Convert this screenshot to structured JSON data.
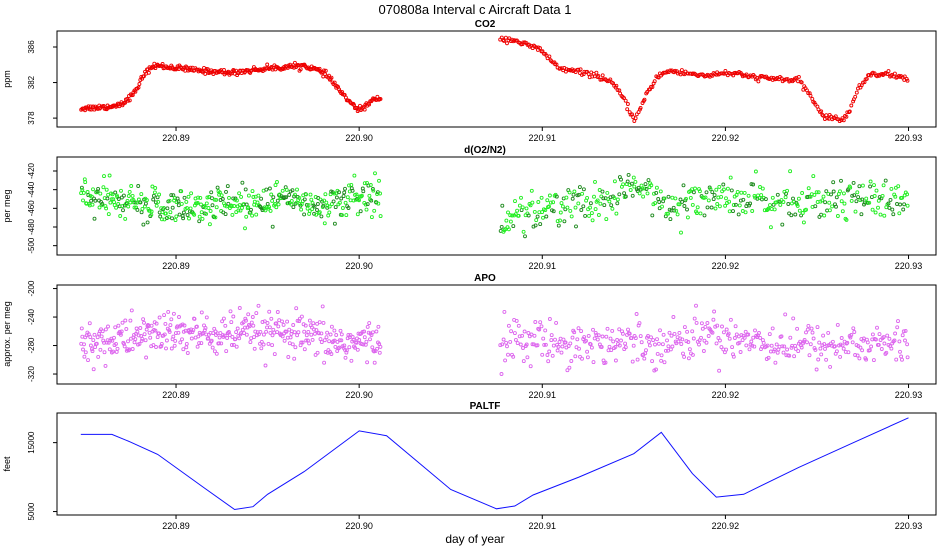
{
  "figure": {
    "title": "070808a   Interval c Aircraft Data 1",
    "xlabel": "day of year"
  },
  "chart_data": [
    {
      "type": "scatter",
      "title": "CO2",
      "ylabel": "ppm",
      "color": "#ee0000",
      "xlim": [
        220.8835,
        220.9315
      ],
      "ylim": [
        377.0,
        387.8
      ],
      "yticks": [
        378,
        382,
        386
      ],
      "xticks": [
        220.89,
        220.9,
        220.91,
        220.92,
        220.93
      ],
      "xtick_labels": [
        "220.89",
        "220.90",
        "220.91",
        "220.92",
        "220.93"
      ],
      "segments": [
        [
          220.8848,
          220.9012
        ],
        [
          220.9077,
          220.93
        ]
      ],
      "noise": 0.15,
      "points_per_segment": 320,
      "trend_x": [
        220.8848,
        220.8865,
        220.8872,
        220.8878,
        220.8882,
        220.8887,
        220.889,
        220.891,
        220.893,
        220.895,
        220.897,
        220.8975,
        220.8982,
        220.899,
        220.8995,
        220.9,
        220.9005,
        220.901,
        220.9012,
        220.9077,
        220.9085,
        220.909,
        220.9098,
        220.9105,
        220.911,
        220.912,
        220.913,
        220.9138,
        220.9145,
        220.915,
        220.9153,
        220.9158,
        220.9163,
        220.917,
        220.918,
        220.919,
        220.92,
        220.921,
        220.922,
        220.923,
        220.924,
        220.9245,
        220.9252,
        220.9256,
        220.926,
        220.9265,
        220.9268,
        220.9272,
        220.9278,
        220.928,
        220.929,
        220.93
      ],
      "trend_y": [
        379.1,
        379.3,
        379.8,
        381.0,
        382.8,
        383.8,
        383.9,
        383.4,
        383.1,
        383.6,
        383.9,
        383.6,
        382.9,
        381.0,
        379.7,
        378.9,
        379.6,
        380.3,
        380.2,
        386.9,
        386.8,
        386.3,
        385.8,
        384.5,
        383.5,
        383.2,
        382.8,
        382.0,
        380.0,
        377.8,
        378.8,
        381.0,
        382.8,
        383.3,
        383.0,
        382.8,
        383.1,
        382.8,
        382.5,
        382.4,
        382.2,
        381.0,
        378.6,
        378.0,
        378.0,
        377.9,
        379.0,
        381.0,
        382.8,
        383.0,
        382.9,
        382.4
      ]
    },
    {
      "type": "scatter",
      "title": "d(O2/N2)",
      "ylabel": "per meg",
      "color": "#22ee22",
      "color_alt": "#1f8a1f",
      "xlim": [
        220.8835,
        220.9315
      ],
      "ylim": [
        -510,
        -405
      ],
      "yticks": [
        -500,
        -480,
        -460,
        -440,
        -420
      ],
      "xticks": [
        220.89,
        220.9,
        220.91,
        220.92,
        220.93
      ],
      "xtick_labels": [
        "220.89",
        "220.90",
        "220.91",
        "220.92",
        "220.93"
      ],
      "segments": [
        [
          220.8848,
          220.9012
        ],
        [
          220.9077,
          220.93
        ]
      ],
      "noise": 10,
      "points_per_segment": 420,
      "trend_x": [
        220.8848,
        220.886,
        220.889,
        220.892,
        220.895,
        220.898,
        220.9,
        220.9012,
        220.9077,
        220.909,
        220.911,
        220.9135,
        220.915,
        220.917,
        220.919,
        220.921,
        220.923,
        220.925,
        220.927,
        220.929,
        220.93
      ],
      "trend_y": [
        -447,
        -452,
        -458,
        -456,
        -452,
        -454,
        -448,
        -444,
        -474,
        -465,
        -457,
        -455,
        -438,
        -455,
        -447,
        -452,
        -455,
        -450,
        -446,
        -453,
        -451
      ]
    },
    {
      "type": "scatter",
      "title": "APO",
      "ylabel": "approx. per meg",
      "color": "#dd66ee",
      "xlim": [
        220.8835,
        220.9315
      ],
      "ylim": [
        -334,
        -195
      ],
      "yticks": [
        -320,
        -280,
        -240,
        -200
      ],
      "xticks": [
        220.89,
        220.9,
        220.91,
        220.92,
        220.93
      ],
      "xtick_labels": [
        "220.89",
        "220.90",
        "220.91",
        "220.92",
        "220.93"
      ],
      "segments": [
        [
          220.8848,
          220.9012
        ],
        [
          220.9077,
          220.93
        ]
      ],
      "noise": 15,
      "points_per_segment": 420,
      "trend_x": [
        220.8848,
        220.887,
        220.8895,
        220.892,
        220.8945,
        220.897,
        220.899,
        220.9012,
        220.9077,
        220.91,
        220.913,
        220.915,
        220.917,
        220.919,
        220.921,
        220.923,
        220.925,
        220.928,
        220.93
      ],
      "trend_y": [
        -280,
        -270,
        -262,
        -266,
        -262,
        -268,
        -276,
        -276,
        -270,
        -274,
        -277,
        -273,
        -277,
        -262,
        -270,
        -277,
        -279,
        -278,
        -277
      ]
    },
    {
      "type": "line",
      "title": "PALTF",
      "ylabel": "feet",
      "color": "#1111ff",
      "xlim": [
        220.8835,
        220.9315
      ],
      "ylim": [
        4500,
        19300
      ],
      "yticks": [
        5000,
        15000
      ],
      "xticks": [
        220.89,
        220.9,
        220.91,
        220.92,
        220.93
      ],
      "xtick_labels": [
        "220.89",
        "220.90",
        "220.91",
        "220.92",
        "220.93"
      ],
      "x": [
        220.8848,
        220.8865,
        220.8875,
        220.889,
        220.8915,
        220.8932,
        220.8942,
        220.895,
        220.897,
        220.9,
        220.9015,
        220.905,
        220.9075,
        220.9085,
        220.9095,
        220.912,
        220.915,
        220.9165,
        220.9182,
        220.9195,
        220.921,
        220.924,
        220.927,
        220.93
      ],
      "y": [
        16200,
        16200,
        15100,
        13300,
        8500,
        5300,
        5700,
        7500,
        10800,
        16700,
        16000,
        8200,
        5400,
        5800,
        7400,
        10000,
        13400,
        16500,
        10500,
        7100,
        7500,
        11400,
        15000,
        18600
      ]
    }
  ]
}
